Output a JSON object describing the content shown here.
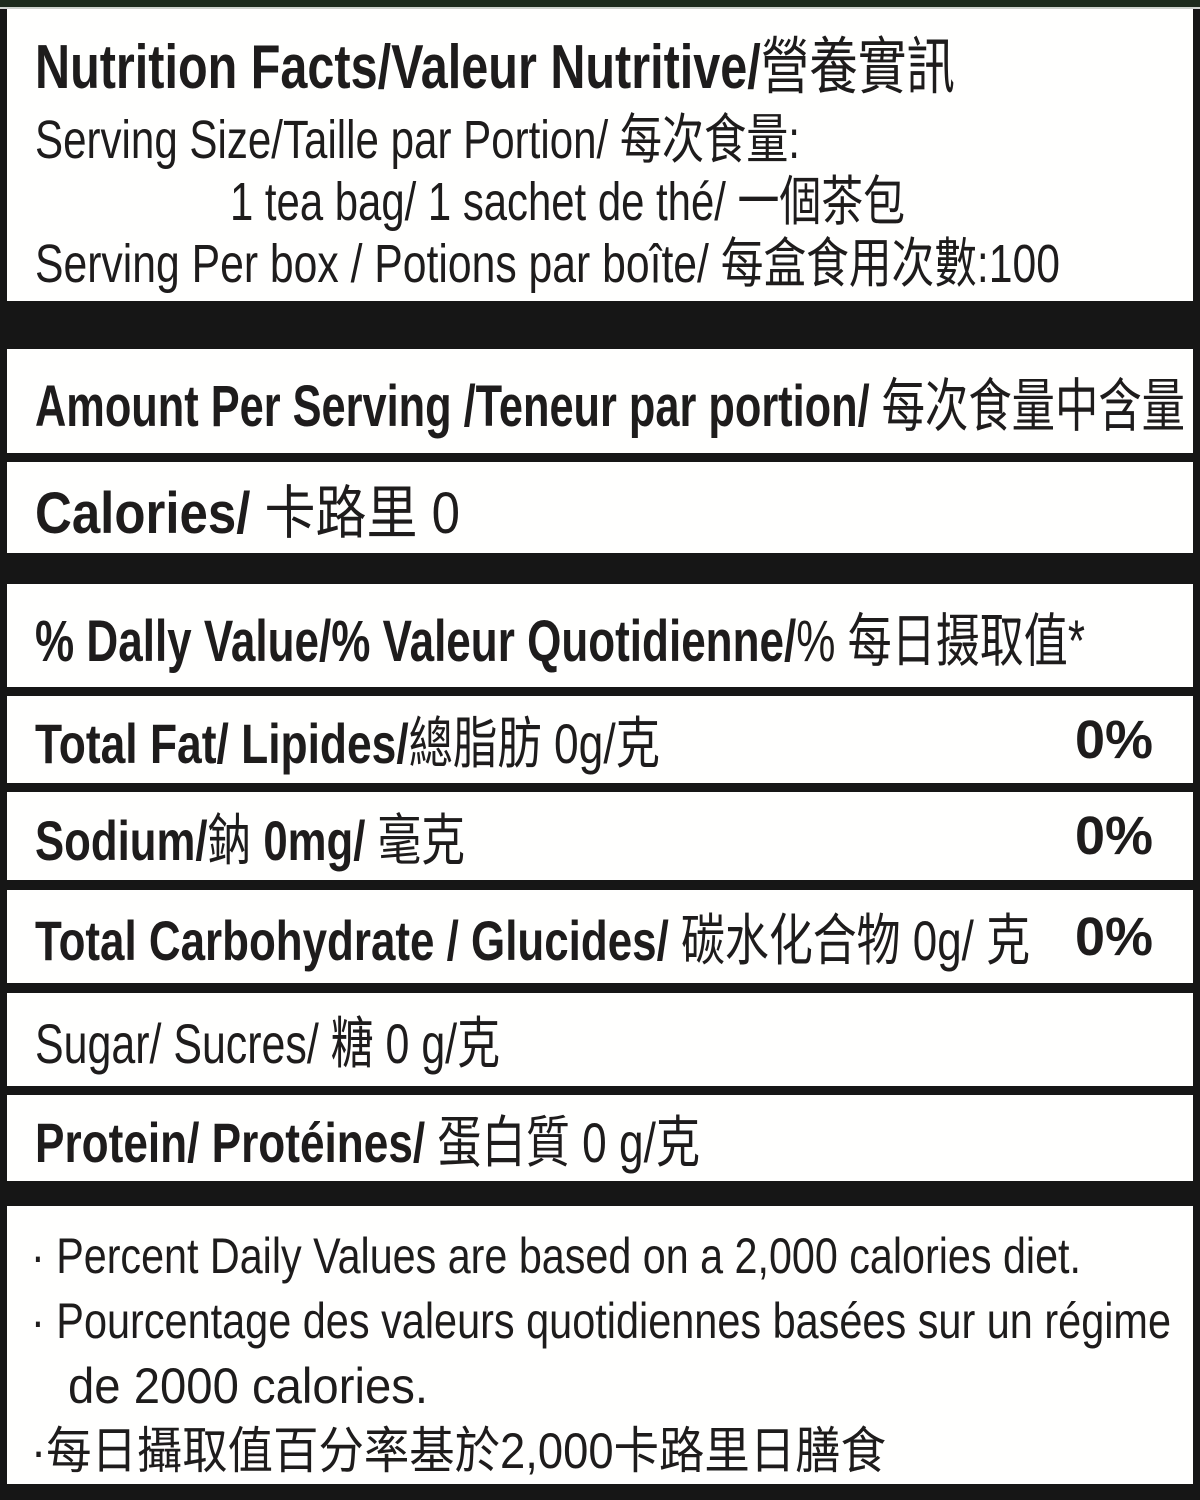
{
  "colors": {
    "background_bars": "#161616",
    "panel": "#fffffe",
    "text": "#1e1c1c",
    "top_strip_green": "#1c2b1c"
  },
  "header": {
    "title_bold": "Nutrition Facts/Valeur Nutritive/",
    "title_cjk": "營養實訊",
    "serving_size": "Serving Size/Taille par Portion/ 每次食量:",
    "serving_size_value": "1 tea bag/ 1 sachet de thé/ 一個茶包",
    "servings_per_box": "Serving Per  box / Potions par boîte/ 每盒食用次數:100"
  },
  "amount_per_serving": {
    "bold": "Amount Per Serving /Teneur par portion/",
    "cjk": " 每次食量中含量"
  },
  "calories": {
    "bold": "Calories/",
    "rest": " 卡路里 0"
  },
  "daily_value_header": {
    "bold": "% Dally Value/% Valeur Quotidienne/",
    "rest": "% 每日摄取值*"
  },
  "nutrients": {
    "total_fat": {
      "bold": "Total Fat/ Lipides/",
      "rest": "總脂肪 0g/克",
      "dv": "0%"
    },
    "sodium": {
      "bold": "Sodium/",
      "zh": "鈉 ",
      "amount_bold": "0mg/",
      "unit": " 毫克",
      "dv": "0%"
    },
    "total_carbohydrate": {
      "bold": "Total Carbohydrate / Glucides/",
      "rest": " 碳水化合物 0g/ 克",
      "dv": "0%"
    },
    "sugar": {
      "text": "Sugar/ Sucres/ 糖  0 g/克"
    },
    "protein": {
      "bold": "Protein/ Protéines/",
      "rest": " 蛋白質  0 g/克"
    }
  },
  "footnotes": [
    "· Percent Daily Values are based on a 2,000 calories diet.",
    "· Pourcentage des valeurs quotidiennes basées sur un régime",
    "de 2000 calories.",
    "·每日攝取值百分率基於2,000卡路里日膳食"
  ]
}
